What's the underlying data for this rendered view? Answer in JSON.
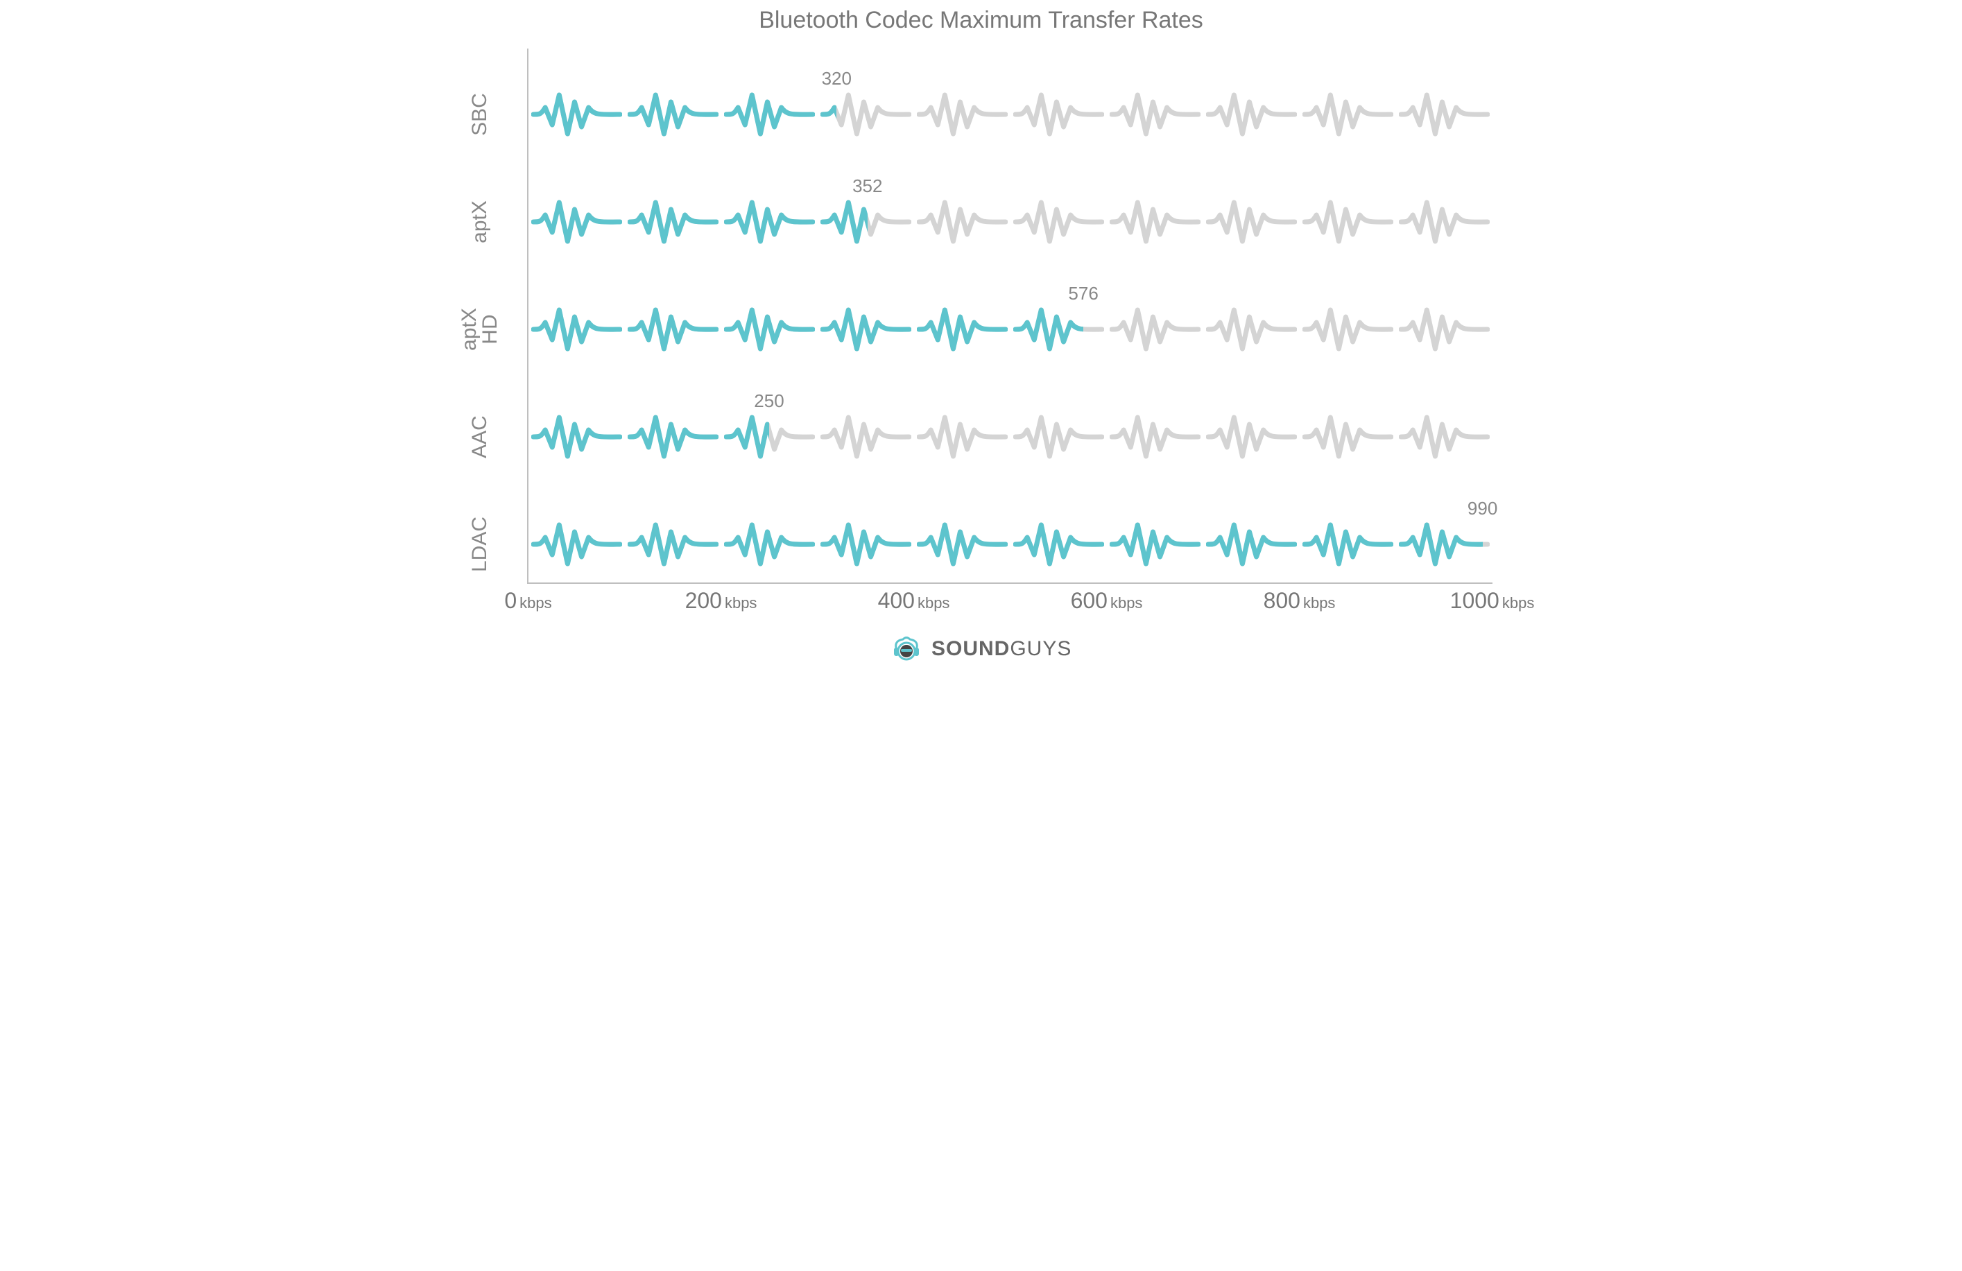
{
  "title": "Bluetooth Codec Maximum Transfer Rates",
  "chart": {
    "type": "pictogram-bar",
    "x_max": 1000,
    "x_tick_step": 200,
    "x_unit": "kbps",
    "x_ticks": [
      0,
      200,
      400,
      600,
      800,
      1000
    ],
    "cells_per_row": 10,
    "cell_value": 100,
    "active_color": "#5dc4cd",
    "inactive_color": "#d4d4d4",
    "value_label_color": "#888888",
    "axis_color": "#bfbfbf",
    "background_color": "#ffffff",
    "title_color": "#777777",
    "title_fontsize": 34,
    "ylabel_fontsize": 30,
    "value_label_fontsize": 26,
    "xtick_num_fontsize": 32,
    "xtick_unit_fontsize": 22,
    "rows": [
      {
        "label": "SBC",
        "value": 320
      },
      {
        "label": "aptX",
        "value": 352
      },
      {
        "label": "aptX\nHD",
        "value": 576
      },
      {
        "label": "AAC",
        "value": 250
      },
      {
        "label": "LDAC",
        "value": 990
      }
    ]
  },
  "logo": {
    "brand_accent": "#5dc4cd",
    "brand_text_color": "#666666",
    "text_bold": "SOUND",
    "text_light": "GUYS"
  }
}
